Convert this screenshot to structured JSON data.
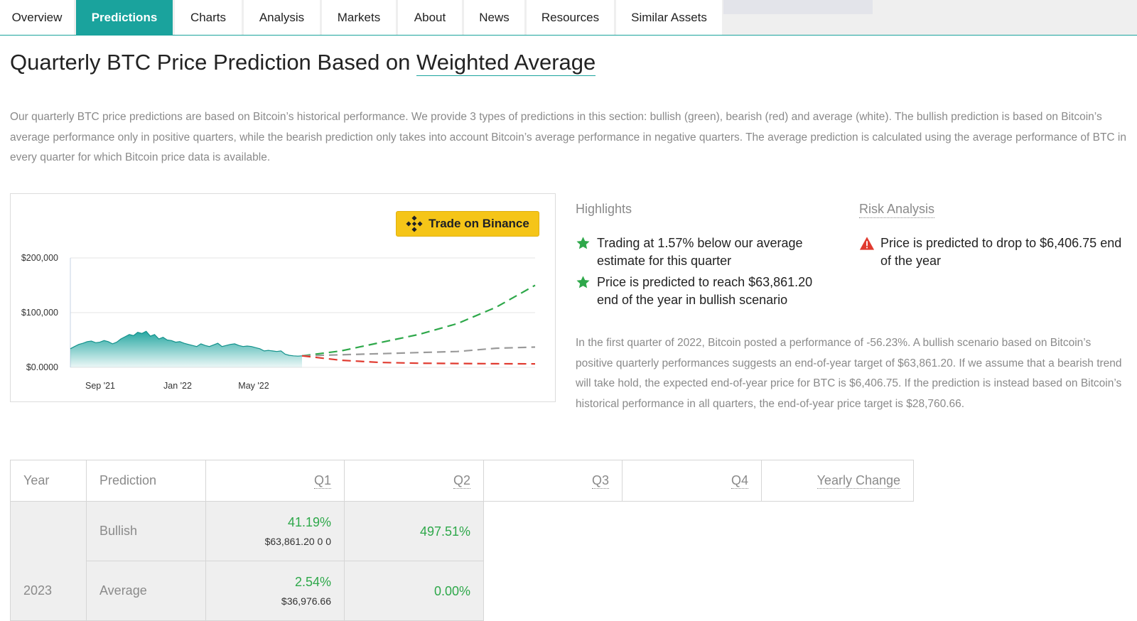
{
  "tabs": [
    {
      "label": "Overview",
      "active": false
    },
    {
      "label": "Predictions",
      "active": true
    },
    {
      "label": "Charts",
      "active": false
    },
    {
      "label": "Analysis",
      "active": false
    },
    {
      "label": "Markets",
      "active": false
    },
    {
      "label": "About",
      "active": false
    },
    {
      "label": "News",
      "active": false
    },
    {
      "label": "Resources",
      "active": false
    },
    {
      "label": "Similar Assets",
      "active": false
    }
  ],
  "title": {
    "prefix": "Quarterly BTC Price Prediction Based on ",
    "link": "Weighted Average"
  },
  "intro": "Our quarterly BTC price predictions are based on Bitcoin’s historical performance. We provide 3 types of predictions in this section: bullish (green), bearish (red) and average (white). The bullish prediction is based on Bitcoin’s average performance only in positive quarters, while the bearish prediction only takes into account Bitcoin’s average performance in negative quarters. The average prediction is calculated using the average performance of BTC in every quarter for which Bitcoin price data is available.",
  "binance_button": "Trade on Binance",
  "colors": {
    "accent": "#1aa39d",
    "bullish": "#2ea84a",
    "bearish": "#e03a2f",
    "average": "#9a9a9a",
    "warning": "#e03a2f",
    "binance": "#f5c518"
  },
  "chart_data": {
    "type": "area",
    "title": "",
    "xlabel": "",
    "ylabel": "",
    "y_ticks": [
      "$200,000",
      "$100,000",
      "$0.0000"
    ],
    "x_ticks": [
      "Sep '21",
      "Jan '22",
      "May '22"
    ],
    "ylim": [
      0,
      200000
    ],
    "grid": true,
    "history": {
      "name": "",
      "values": [
        34000,
        38000,
        42000,
        44000,
        47000,
        48000,
        45000,
        46000,
        49000,
        47000,
        43000,
        46000,
        52000,
        56000,
        60000,
        58000,
        64000,
        62000,
        66000,
        57000,
        60000,
        52000,
        55000,
        50000,
        49000,
        46000,
        47000,
        44000,
        42000,
        40000,
        38000,
        43000,
        40000,
        38000,
        41000,
        44000,
        38000,
        40000,
        42000,
        43000,
        40000,
        38000,
        39000,
        38000,
        36000,
        34000,
        30000,
        31000,
        30000,
        29000,
        30000,
        24000,
        22000,
        21000,
        20500,
        21000
      ]
    },
    "projections": [
      {
        "name": "bullish",
        "values": [
          21000,
          30000,
          45000,
          60000,
          80000,
          110000,
          150000
        ]
      },
      {
        "name": "average",
        "values": [
          21000,
          23000,
          25000,
          27000,
          29000,
          35000,
          37000
        ]
      },
      {
        "name": "bearish",
        "values": [
          21000,
          13000,
          9000,
          7500,
          7000,
          6600,
          6400
        ]
      }
    ]
  },
  "highlights": {
    "heading": "Highlights",
    "items": [
      {
        "text": "Trading at 1.57% below our average estimate for this quarter",
        "icon": "star-icon"
      },
      {
        "text": "Price is predicted to reach $63,861.20 end of the year in bullish scenario",
        "icon": "star-icon"
      }
    ]
  },
  "risk": {
    "heading": "Risk Analysis",
    "items": [
      {
        "text": "Price is predicted to drop to $6,406.75 end of the year",
        "icon": "warning-icon"
      }
    ]
  },
  "analysis_text": "In the first quarter of 2022, Bitcoin posted a performance of -56.23%. A bullish scenario based on Bitcoin’s positive quarterly performances suggests an end-of-year target of $63,861.20. If we assume that a bearish trend will take hold, the expected end-of-year price for BTC is $6,406.75. If the prediction is instead based on Bitcoin’s historical performance in all quarters, the end-of-year price target is $28,760.66.",
  "table": {
    "headers": [
      "Year",
      "Prediction",
      "Q1",
      "Q2",
      "Q3",
      "Q4",
      "Yearly Change"
    ],
    "year": "2023",
    "rows": [
      {
        "prediction": "Bullish",
        "q1_pct": "41.19%",
        "q1_price": "$63,861.20 0 0",
        "q2_pct": "497.51%"
      },
      {
        "prediction": "Average",
        "q1_pct": "2.54%",
        "q1_price": "$36,976.66",
        "q2_pct": "0.00%"
      }
    ]
  }
}
